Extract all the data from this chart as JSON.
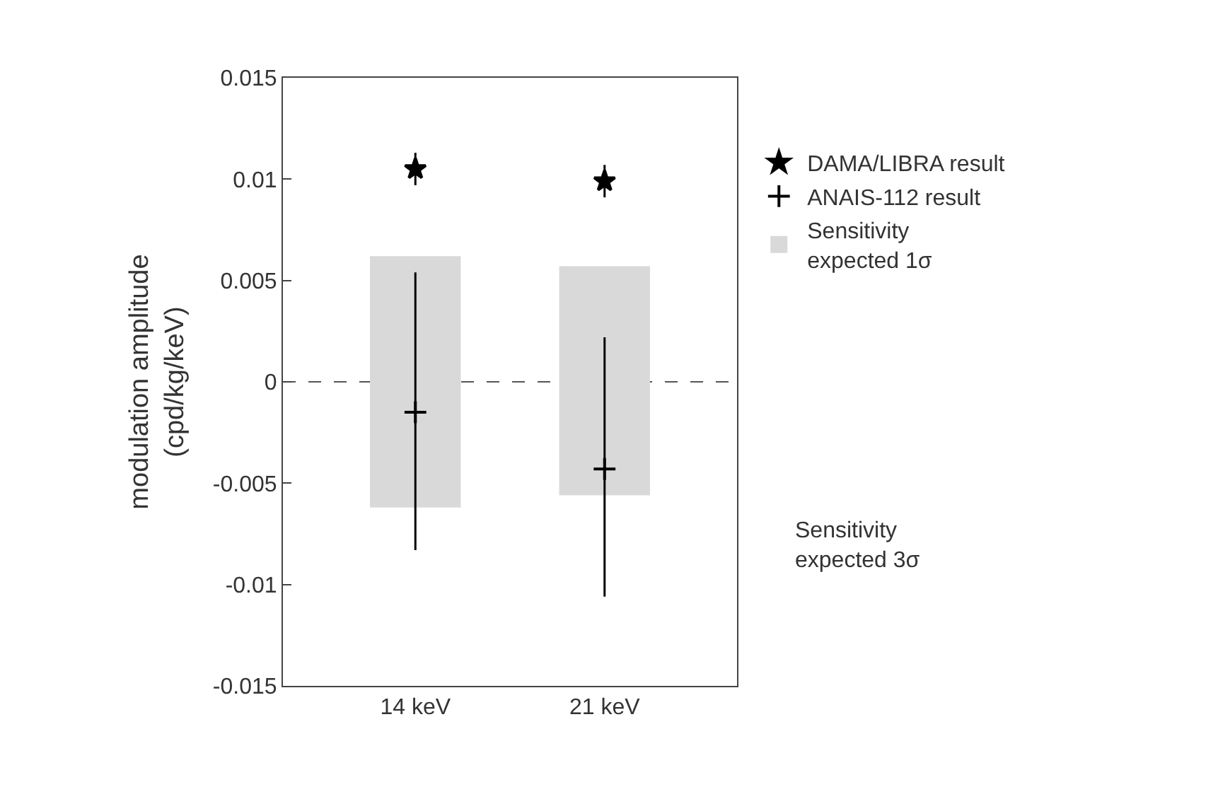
{
  "chart_data": {
    "type": "scatter",
    "ylabel": "modulation amplitude\n(cpd/kg/keV)",
    "categories": [
      "14 keV",
      "21 keV"
    ],
    "ylim": [
      -0.015,
      0.015
    ],
    "yticks": [
      {
        "value": -0.015,
        "label": "-0.015"
      },
      {
        "value": -0.01,
        "label": "-0.01"
      },
      {
        "value": -0.005,
        "label": "-0.005"
      },
      0,
      {
        "value": 0.005,
        "label": "0.005"
      },
      {
        "value": 0.01,
        "label": "0.01"
      },
      {
        "value": 0.015,
        "label": "0.015"
      }
    ],
    "series": [
      {
        "name": "DAMA/LIBRA result",
        "color": "#000000",
        "marker": "star",
        "values": [
          0.0105,
          0.0099
        ],
        "errors": [
          0.0008,
          0.0008
        ]
      },
      {
        "name": "ANAIS-112 result",
        "color": "#000000",
        "marker": "cross",
        "values": [
          -0.0015,
          -0.0043
        ],
        "errors": [
          [
            -0.0083,
            0.0054
          ],
          [
            -0.0106,
            0.0022
          ]
        ]
      },
      {
        "name": "Sensitivity\nexpected 1σ",
        "type": "bar",
        "color": "#d9d9d9",
        "base": [
          -0.0062,
          -0.0056
        ],
        "values": [
          0.0124,
          0.0113
        ]
      }
    ],
    "annotations": [
      "Sensitivity\nexpected 3σ"
    ],
    "ref_lines": [
      {
        "axis": "y",
        "value": 0,
        "line_style": "dashed",
        "color": "#555555"
      }
    ],
    "grid": false,
    "legend": "right"
  }
}
